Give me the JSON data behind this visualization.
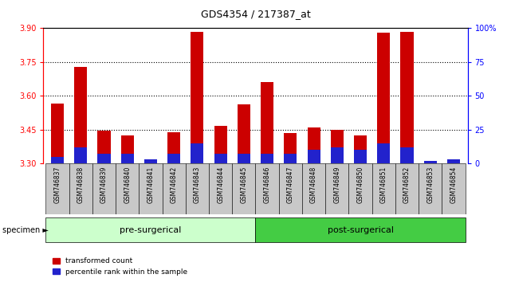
{
  "title": "GDS4354 / 217387_at",
  "categories": [
    "GSM746837",
    "GSM746838",
    "GSM746839",
    "GSM746840",
    "GSM746841",
    "GSM746842",
    "GSM746843",
    "GSM746844",
    "GSM746845",
    "GSM746846",
    "GSM746847",
    "GSM746848",
    "GSM746849",
    "GSM746850",
    "GSM746851",
    "GSM746852",
    "GSM746853",
    "GSM746854"
  ],
  "red_values": [
    3.565,
    3.73,
    3.445,
    3.425,
    3.315,
    3.44,
    3.882,
    3.468,
    3.562,
    3.66,
    3.435,
    3.46,
    3.45,
    3.425,
    3.88,
    3.882,
    3.313,
    3.32
  ],
  "blue_pct": [
    5,
    12,
    7,
    7,
    3,
    7,
    15,
    7,
    7,
    7,
    7,
    10,
    12,
    10,
    15,
    12,
    2,
    3
  ],
  "ymin": 3.3,
  "ymax": 3.9,
  "yright_min": 0,
  "yright_max": 100,
  "yticks_left": [
    3.3,
    3.45,
    3.6,
    3.75,
    3.9
  ],
  "yticks_right": [
    0,
    25,
    50,
    75,
    100
  ],
  "group1_count": 9,
  "group2_count": 9,
  "bar_color_red": "#CC0000",
  "bar_color_blue": "#2222CC",
  "bg_group_presurg": "#CCFFCC",
  "bg_group_postsurg": "#44CC44",
  "legend_red": "transformed count",
  "legend_blue": "percentile rank within the sample",
  "bar_width": 0.55,
  "xlabel_bg": "#C8C8C8"
}
